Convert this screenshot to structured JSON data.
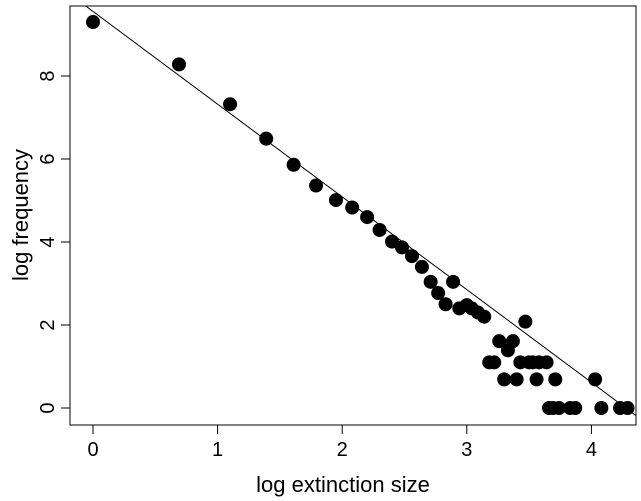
{
  "chart_data": {
    "type": "scatter",
    "title": "",
    "xlabel": "log extinction size",
    "ylabel": "log frequency",
    "xlim": [
      -0.2,
      4.35
    ],
    "ylim": [
      -0.4,
      9.8
    ],
    "x_ticks": [
      0,
      1,
      2,
      3,
      4
    ],
    "y_ticks": [
      0,
      2,
      4,
      6,
      8
    ],
    "x_tick_labels": [
      "0",
      "1",
      "2",
      "3",
      "4"
    ],
    "y_tick_labels": [
      "0",
      "2",
      "4",
      "6",
      "8"
    ],
    "grid": false,
    "legend": "none",
    "marker_color": "#000000",
    "points": [
      [
        0.0,
        9.3
      ],
      [
        0.69,
        8.28
      ],
      [
        1.1,
        7.32
      ],
      [
        1.39,
        6.49
      ],
      [
        1.61,
        5.86
      ],
      [
        1.79,
        5.36
      ],
      [
        1.95,
        5.01
      ],
      [
        2.08,
        4.83
      ],
      [
        2.2,
        4.6
      ],
      [
        2.3,
        4.29
      ],
      [
        2.4,
        4.01
      ],
      [
        2.48,
        3.87
      ],
      [
        2.56,
        3.66
      ],
      [
        2.64,
        3.4
      ],
      [
        2.71,
        3.04
      ],
      [
        2.77,
        2.77
      ],
      [
        2.83,
        2.5
      ],
      [
        2.89,
        3.04
      ],
      [
        2.94,
        2.4
      ],
      [
        3.0,
        2.48
      ],
      [
        3.04,
        2.4
      ],
      [
        3.09,
        2.3
      ],
      [
        3.14,
        2.2
      ],
      [
        3.18,
        1.1
      ],
      [
        3.22,
        1.1
      ],
      [
        3.26,
        1.61
      ],
      [
        3.3,
        0.69
      ],
      [
        3.33,
        1.39
      ],
      [
        3.37,
        1.61
      ],
      [
        3.4,
        0.69
      ],
      [
        3.43,
        1.1
      ],
      [
        3.47,
        2.08
      ],
      [
        3.5,
        1.1
      ],
      [
        3.53,
        1.1
      ],
      [
        3.56,
        0.69
      ],
      [
        3.58,
        1.1
      ],
      [
        3.64,
        1.1
      ],
      [
        3.66,
        0.0
      ],
      [
        3.69,
        0.0
      ],
      [
        3.71,
        0.69
      ],
      [
        3.74,
        0.0
      ],
      [
        3.83,
        0.0
      ],
      [
        3.87,
        0.0
      ],
      [
        4.03,
        0.69
      ],
      [
        4.08,
        0.0
      ],
      [
        4.23,
        0.0
      ],
      [
        4.29,
        0.0
      ]
    ],
    "fit_line": {
      "x": [
        -0.1,
        4.5
      ],
      "y": [
        9.78,
        -0.5
      ]
    }
  }
}
